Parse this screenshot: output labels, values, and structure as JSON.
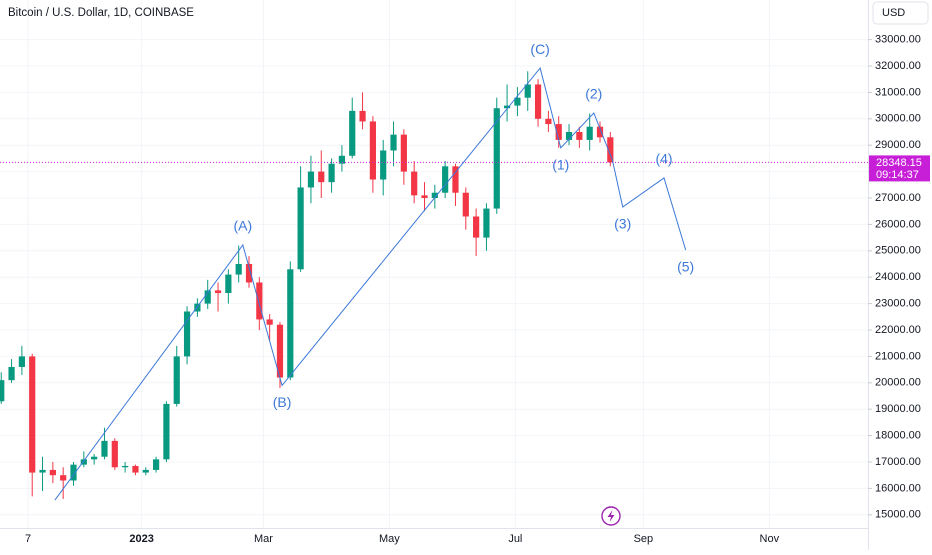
{
  "chart_data": {
    "type": "candlestick",
    "title": "Bitcoin / U.S. Dollar, 1D, COINBASE",
    "currency": "USD",
    "xlim": [
      -13.6,
      406.8
    ],
    "xticks": [
      {
        "value": 0,
        "label": "7"
      },
      {
        "value": 55,
        "label": "2023"
      },
      {
        "value": 114,
        "label": "Mar"
      },
      {
        "value": 175,
        "label": "May"
      },
      {
        "value": 236,
        "label": "Jul"
      },
      {
        "value": 298,
        "label": "Sep"
      },
      {
        "value": 359,
        "label": "Nov"
      }
    ],
    "ylim": [
      14500,
      34500
    ],
    "yticks": [
      {
        "value": 15000,
        "label": "15000.00"
      },
      {
        "value": 16000,
        "label": "16000.00"
      },
      {
        "value": 17000,
        "label": "17000.00"
      },
      {
        "value": 18000,
        "label": "18000.00"
      },
      {
        "value": 19000,
        "label": "19000.00"
      },
      {
        "value": 20000,
        "label": "20000.00"
      },
      {
        "value": 21000,
        "label": "21000.00"
      },
      {
        "value": 22000,
        "label": "22000.00"
      },
      {
        "value": 23000,
        "label": "23000.00"
      },
      {
        "value": 24000,
        "label": "24000.00"
      },
      {
        "value": 25000,
        "label": "25000.00"
      },
      {
        "value": 26000,
        "label": "26000.00"
      },
      {
        "value": 27000,
        "label": "27000.00"
      },
      {
        "value": 28000,
        "label": "28000.00"
      },
      {
        "value": 29000,
        "label": "29000.00"
      },
      {
        "value": 30000,
        "label": "30000.00"
      },
      {
        "value": 31000,
        "label": "31000.00"
      },
      {
        "value": 32000,
        "label": "32000.00"
      },
      {
        "value": 33000,
        "label": "33000.00"
      }
    ],
    "grid": true,
    "up_color": "#089981",
    "down_color": "#f23645",
    "candles": {
      "x": [
        -13,
        -8,
        -3,
        2,
        7,
        12,
        17,
        22,
        27,
        32,
        37,
        42,
        47,
        52,
        57,
        62,
        67,
        72,
        77,
        82,
        87,
        92,
        97,
        102,
        107,
        112,
        117,
        122,
        127,
        132,
        137,
        142,
        147,
        152,
        157,
        162,
        167,
        172,
        177,
        182,
        187,
        192,
        197,
        202,
        207,
        212,
        217,
        222,
        227,
        232,
        237,
        242,
        247,
        252,
        257,
        262,
        267,
        272,
        277,
        282
      ],
      "open": [
        19300,
        20100,
        20600,
        21000,
        16600,
        16700,
        16500,
        16300,
        16900,
        17100,
        17200,
        17800,
        16800,
        16850,
        16600,
        16700,
        17100,
        19200,
        21000,
        22700,
        23000,
        23500,
        23400,
        24100,
        24500,
        23800,
        22400,
        22200,
        20200,
        24300,
        27400,
        28000,
        27600,
        28300,
        28600,
        30300,
        29900,
        27700,
        28800,
        29400,
        28000,
        27100,
        27000,
        27200,
        28200,
        27200,
        26300,
        25500,
        26600,
        30400,
        30500,
        30800,
        31300,
        30000,
        29800,
        29200,
        29500,
        29200,
        29700,
        29300
      ],
      "high": [
        20400,
        20900,
        21400,
        21100,
        17200,
        17000,
        16800,
        17000,
        17400,
        17300,
        18300,
        17900,
        17000,
        16900,
        16800,
        17200,
        19300,
        21400,
        22900,
        23200,
        23900,
        23800,
        24300,
        25200,
        24800,
        24000,
        22600,
        22300,
        24600,
        28200,
        28600,
        28800,
        28500,
        29000,
        30800,
        31000,
        30100,
        29200,
        29900,
        29600,
        28400,
        27600,
        27500,
        28400,
        28300,
        27400,
        26600,
        26800,
        30800,
        31300,
        31200,
        31800,
        31500,
        30300,
        30100,
        29800,
        29700,
        30200,
        29900,
        29500
      ],
      "low": [
        19200,
        20000,
        20300,
        15700,
        15900,
        16200,
        15600,
        16100,
        16800,
        16900,
        17100,
        16700,
        16600,
        16500,
        16500,
        16600,
        17000,
        19100,
        20700,
        22500,
        22800,
        22700,
        23000,
        23800,
        23600,
        22000,
        21600,
        19800,
        20100,
        24200,
        26800,
        27000,
        27200,
        28000,
        28500,
        29600,
        27200,
        27100,
        28200,
        27500,
        26800,
        26500,
        26600,
        27000,
        26700,
        25800,
        24800,
        25000,
        26400,
        29900,
        30100,
        30300,
        29700,
        29500,
        28900,
        29000,
        28900,
        28800,
        29100,
        28200
      ],
      "close": [
        20100,
        20600,
        21000,
        16600,
        16700,
        16500,
        16300,
        16900,
        17100,
        17200,
        17800,
        16800,
        16850,
        16600,
        16700,
        17100,
        19200,
        21000,
        22700,
        23000,
        23500,
        23400,
        24100,
        24500,
        23800,
        22400,
        22200,
        20200,
        24300,
        27400,
        28000,
        27600,
        28300,
        28600,
        30300,
        29900,
        27700,
        28800,
        29400,
        28000,
        27100,
        27000,
        27200,
        28200,
        27200,
        26300,
        25500,
        26600,
        30400,
        30500,
        30800,
        31300,
        30000,
        29800,
        29200,
        29500,
        29200,
        29700,
        29300,
        28348.15
      ]
    },
    "last_price": 28348.15,
    "last_price_color": "#c71fd8",
    "countdown": "09:14:37",
    "wave_color": "#3c78d8",
    "wave": {
      "x": [
        13,
        104,
        123,
        248,
        258,
        274,
        283,
        288,
        308,
        318.5
      ],
      "y": [
        15560,
        25220,
        19900,
        31920,
        28900,
        30220,
        28440,
        26660,
        27760,
        25030
      ],
      "labels": [
        null,
        "(A)",
        "(B)",
        "(C)",
        "(1)",
        "(2)",
        null,
        "(3)",
        "(4)",
        "(5)"
      ]
    }
  }
}
